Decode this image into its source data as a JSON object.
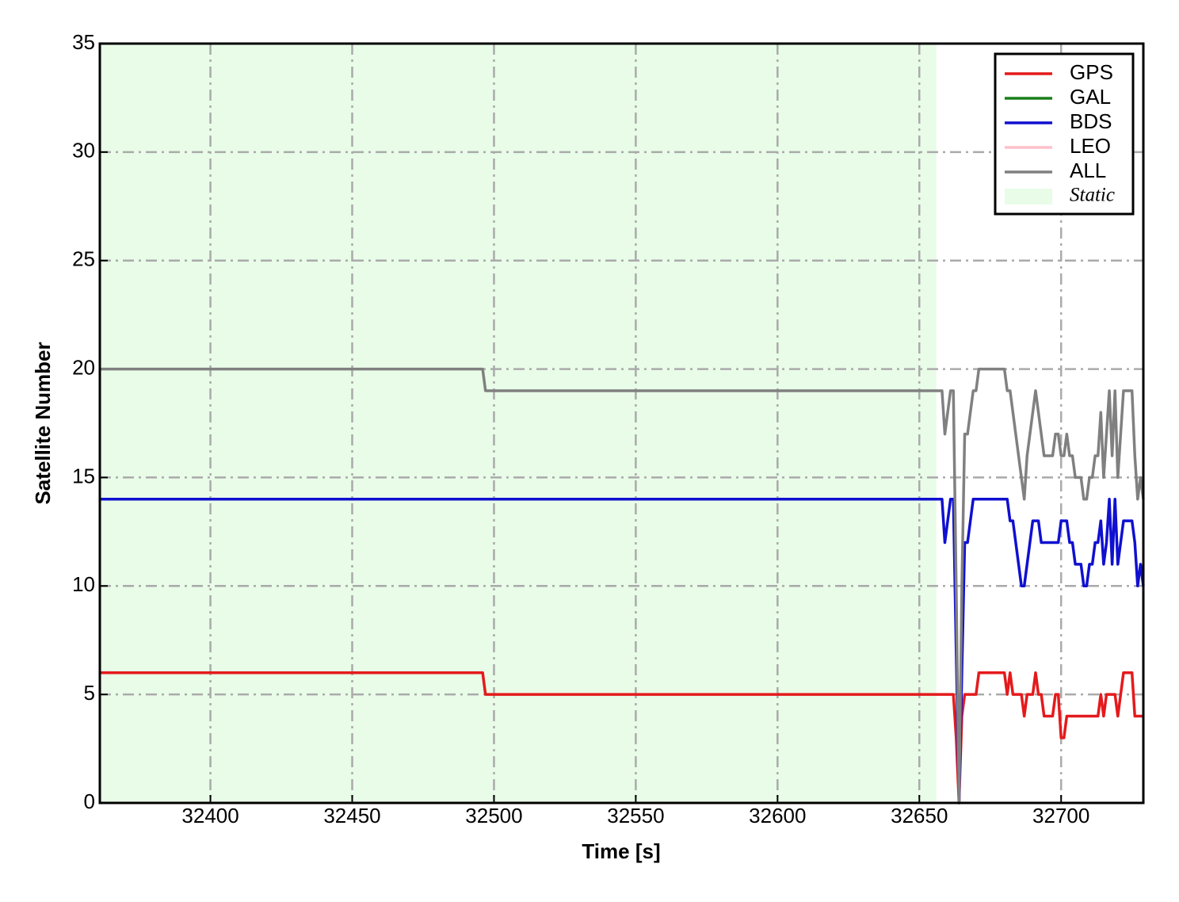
{
  "chart_data": {
    "type": "line",
    "xlabel": "Time [s]",
    "ylabel": "Satellite Number",
    "x": [
      32361,
      32496,
      32497,
      32658,
      32659,
      32660,
      32661,
      32662,
      32663,
      32664,
      32665,
      32666,
      32667,
      32668,
      32669,
      32670,
      32671,
      32672,
      32673,
      32674,
      32675,
      32676,
      32677,
      32678,
      32679,
      32680,
      32681,
      32682,
      32683,
      32684,
      32685,
      32686,
      32687,
      32688,
      32689,
      32690,
      32691,
      32692,
      32693,
      32694,
      32695,
      32696,
      32697,
      32698,
      32699,
      32700,
      32701,
      32702,
      32703,
      32704,
      32705,
      32706,
      32707,
      32708,
      32709,
      32710,
      32711,
      32712,
      32713,
      32714,
      32715,
      32716,
      32717,
      32718,
      32719,
      32720,
      32721,
      32722,
      32723,
      32724,
      32725,
      32726,
      32727,
      32728,
      32729
    ],
    "series": [
      {
        "name": "GPS",
        "color": "#e41a1c",
        "values": [
          6,
          6,
          5,
          5,
          5,
          5,
          5,
          5,
          3,
          0,
          4,
          5,
          5,
          5,
          5,
          5,
          6,
          6,
          6,
          6,
          6,
          6,
          6,
          6,
          6,
          6,
          5,
          6,
          5,
          5,
          5,
          5,
          4,
          5,
          5,
          5,
          6,
          5,
          5,
          4,
          4,
          4,
          4,
          5,
          5,
          3,
          3,
          4,
          4,
          4,
          4,
          4,
          4,
          4,
          4,
          4,
          4,
          4,
          4,
          5,
          4,
          5,
          5,
          5,
          5,
          4,
          5,
          6,
          6,
          6,
          6,
          4,
          4,
          4,
          4
        ]
      },
      {
        "name": "GAL",
        "color": "#1a7f1a"
      },
      {
        "name": "BDS",
        "color": "#1010d0",
        "values": [
          14,
          14,
          14,
          14,
          12,
          13,
          14,
          14,
          7,
          0,
          6,
          12,
          12,
          13,
          14,
          14,
          14,
          14,
          14,
          14,
          14,
          14,
          14,
          14,
          14,
          14,
          14,
          13,
          13,
          12,
          11,
          10,
          10,
          11,
          12,
          13,
          13,
          13,
          12,
          12,
          12,
          12,
          12,
          12,
          12,
          13,
          13,
          13,
          12,
          12,
          11,
          11,
          11,
          10,
          10,
          11,
          11,
          12,
          12,
          13,
          11,
          12,
          14,
          11,
          14,
          11,
          12,
          13,
          13,
          13,
          13,
          12,
          10,
          11,
          10
        ]
      },
      {
        "name": "LEO",
        "color": "#ffc0cb"
      },
      {
        "name": "ALL",
        "color": "#808080",
        "values": [
          20,
          20,
          19,
          19,
          17,
          18,
          19,
          19,
          10,
          0,
          10,
          17,
          17,
          18,
          19,
          19,
          20,
          20,
          20,
          20,
          20,
          20,
          20,
          20,
          20,
          20,
          19,
          19,
          18,
          17,
          16,
          15,
          14,
          16,
          17,
          18,
          19,
          18,
          17,
          16,
          16,
          16,
          16,
          17,
          17,
          16,
          16,
          17,
          16,
          16,
          15,
          15,
          15,
          14,
          14,
          15,
          15,
          16,
          16,
          18,
          15,
          17,
          19,
          16,
          19,
          15,
          17,
          19,
          19,
          19,
          19,
          16,
          14,
          15,
          14
        ]
      }
    ],
    "static": {
      "label": "Static",
      "color": "#e8fce8",
      "span": [
        32361,
        32656
      ]
    },
    "xlim": [
      32361,
      32729
    ],
    "xticks": [
      32400,
      32450,
      32500,
      32550,
      32600,
      32650,
      32700
    ],
    "ylim": [
      0,
      35
    ],
    "yticks": [
      0,
      5,
      10,
      15,
      20,
      25,
      30,
      35
    ],
    "grid": true,
    "legend": "upper right"
  }
}
